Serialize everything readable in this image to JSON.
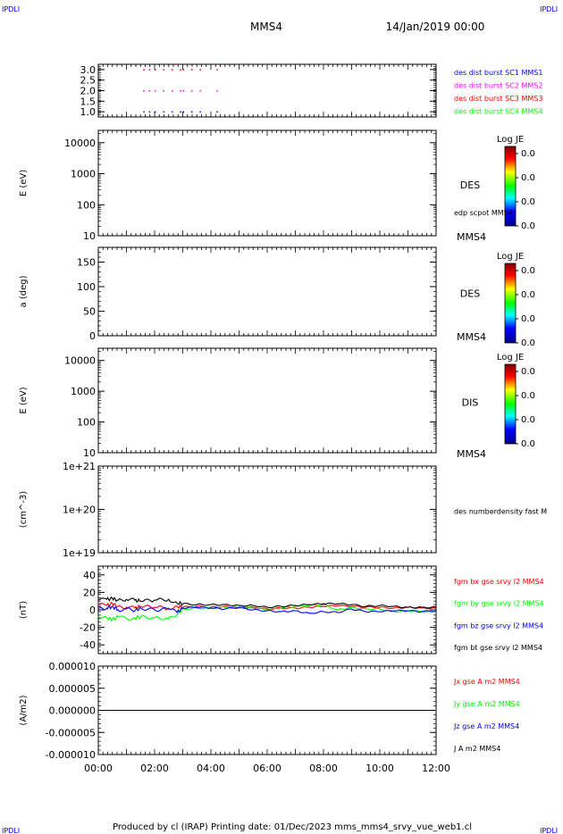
{
  "header": {
    "corner_tl": "IPDLI",
    "corner_tr": "IPDLI",
    "corner_bl": "IPDLI",
    "corner_br": "IPDLI",
    "spacecraft": "MMS4",
    "date": "14/Jan/2019 00:00"
  },
  "footer": {
    "text": "Produced by cl (IRAP)   Printing date: 01/Dec/2023   mms_mms4_srvy_vue_web1.cl"
  },
  "colors": {
    "blue": "#0000ff",
    "magenta": "#ff00ff",
    "red": "#ff0000",
    "green": "#00ff00",
    "black": "#000000"
  },
  "chart_data": [
    {
      "id": "p1",
      "type": "scatter",
      "yticks": [
        "1.0",
        "1.5",
        "2.0",
        "2.5",
        "3.0"
      ],
      "ylim": [
        0.75,
        3.25
      ],
      "xlim": [
        0,
        12
      ],
      "series": [
        {
          "name": "des dist burst SC1 MMS1",
          "color": "#0000ff",
          "y": 1.0,
          "x": [
            1.6,
            1.8,
            2.0,
            2.3,
            2.6,
            2.9,
            3.0,
            3.3,
            3.6,
            4.2
          ]
        },
        {
          "name": "des dist burst SC2 MMS2",
          "color": "#ff00ff",
          "y": 2.0,
          "x": [
            1.6,
            1.8,
            2.0,
            2.3,
            2.6,
            2.9,
            3.0,
            3.3,
            3.6,
            4.2
          ]
        },
        {
          "name": "des dist burst SC3 MMS3",
          "color": "#ff0000",
          "y": 3.0,
          "x": [
            1.6,
            1.8,
            2.0,
            2.3,
            2.6,
            2.9,
            3.0,
            3.3,
            3.6,
            4.2
          ]
        },
        {
          "name": "des dist burst SC4 MMS4",
          "color": "#00ff00",
          "y": 4.0,
          "x": []
        }
      ]
    },
    {
      "id": "p2",
      "type": "heatmap",
      "ylabel": "E (eV)",
      "yscale": "log",
      "yticks": [
        "10",
        "100",
        "1000",
        "10000"
      ],
      "ylim": [
        10,
        25000
      ],
      "instrument": "DES",
      "overlay": "edp scpot MMS4",
      "sc": "MMS4",
      "colorbar": {
        "title": "Log JE",
        "ticks": [
          "0.0",
          "0.0",
          "0.0",
          "0.0"
        ]
      }
    },
    {
      "id": "p3",
      "type": "heatmap",
      "ylabel": "a (deg)",
      "yticks": [
        "0",
        "50",
        "100",
        "150"
      ],
      "ylim": [
        0,
        180
      ],
      "instrument": "DES",
      "sc": "MMS4",
      "colorbar": {
        "title": "Log JE",
        "ticks": [
          "0.0",
          "0.0",
          "0.0",
          "0.0"
        ]
      }
    },
    {
      "id": "p4",
      "type": "heatmap",
      "ylabel": "E (eV)",
      "yscale": "log",
      "yticks": [
        "10",
        "100",
        "1000",
        "10000"
      ],
      "ylim": [
        10,
        25000
      ],
      "instrument": "DIS",
      "sc": "MMS4",
      "colorbar": {
        "title": "Log JE",
        "ticks": [
          "0.0",
          "0.0",
          "0.0",
          "0.0"
        ]
      }
    },
    {
      "id": "p5",
      "type": "line",
      "ylabel": "(cm^-3)",
      "yscale": "log",
      "yticks": [
        "1e+19",
        "1e+20",
        "1e+21"
      ],
      "ylim": [
        1e+19,
        1e+21
      ],
      "series": [
        {
          "name": "des numberdensity fast M",
          "color": "#000000",
          "values": []
        }
      ]
    },
    {
      "id": "p6",
      "type": "line",
      "ylabel": "(nT)",
      "yticks": [
        "-40",
        "-20",
        "0",
        "20",
        "40"
      ],
      "ylim": [
        -50,
        50
      ],
      "x": [
        0.0,
        0.3,
        0.5,
        0.7,
        1.0,
        1.3,
        1.5,
        2.0,
        2.5,
        2.8,
        3.0,
        3.5,
        4.0,
        4.5,
        5.0,
        5.5,
        6.0,
        6.5,
        7.0,
        7.5,
        8.0,
        8.5,
        9.0,
        9.5,
        10.0,
        10.5,
        11.0,
        11.5,
        12.0
      ],
      "series": [
        {
          "name": "fgm bx gse srvy l2 MMS4",
          "color": "#ff0000",
          "values": [
            6,
            5,
            7,
            4,
            3,
            2,
            4,
            3,
            2,
            4,
            3,
            4,
            3,
            4,
            2,
            3,
            1,
            2,
            2,
            3,
            4,
            5,
            4,
            3,
            3,
            2,
            3,
            2,
            2
          ]
        },
        {
          "name": "fgm by gse srvy l2 MMS4",
          "color": "#00ff00",
          "values": [
            -7,
            -9,
            -11,
            -8,
            -10,
            -9,
            -8,
            -9,
            -10,
            -5,
            1,
            2,
            2,
            3,
            3,
            2,
            0,
            2,
            4,
            5,
            6,
            0,
            3,
            1,
            1,
            -2,
            -1,
            -2,
            -2
          ]
        },
        {
          "name": "fgm bz gse srvy l2 MMS4",
          "color": "#0000ff",
          "values": [
            3,
            2,
            4,
            0,
            1,
            -1,
            2,
            0,
            1,
            -3,
            2,
            3,
            2,
            1,
            3,
            0,
            -1,
            -2,
            -1,
            -4,
            -2,
            -3,
            1,
            -2,
            -2,
            -1,
            -1,
            -2,
            -1
          ]
        },
        {
          "name": "fgm bt gse srvy l2 MMS4",
          "color": "#000000",
          "values": [
            11,
            12,
            13,
            11,
            12,
            11,
            10,
            11,
            12,
            8,
            7,
            6,
            6,
            6,
            5,
            5,
            3,
            4,
            5,
            6,
            7,
            7,
            6,
            4,
            5,
            4,
            3,
            3,
            3
          ]
        }
      ]
    },
    {
      "id": "p7",
      "type": "line",
      "ylabel": "(A/m2)",
      "yticks": [
        "-0.000010",
        "-0.000005",
        "0.000000",
        "0.000005",
        "0.000010"
      ],
      "ylim": [
        -1e-05,
        1e-05
      ],
      "x": [
        0,
        1,
        2,
        3,
        4,
        5,
        6,
        7,
        8,
        9,
        10,
        11,
        12
      ],
      "series": [
        {
          "name": "Jx gse A m2 MMS4",
          "color": "#ff0000",
          "values": [
            0,
            0,
            0,
            0,
            0,
            0,
            0,
            0,
            0,
            0,
            0,
            0,
            0
          ]
        },
        {
          "name": "Jy gse A m2 MMS4",
          "color": "#00ff00",
          "values": [
            0,
            0,
            0,
            0,
            0,
            0,
            0,
            0,
            0,
            0,
            0,
            0,
            0
          ]
        },
        {
          "name": "Jz gse A m2 MMS4",
          "color": "#0000ff",
          "values": [
            0,
            0,
            0,
            0,
            0,
            0,
            0,
            0,
            0,
            0,
            0,
            0,
            0
          ]
        },
        {
          "name": "J A m2 MMS4",
          "color": "#000000",
          "values": [
            0,
            0,
            0,
            0,
            0,
            0,
            0,
            0,
            0,
            0,
            0,
            0,
            0
          ]
        }
      ]
    }
  ],
  "time_axis": {
    "xlim": [
      0,
      12
    ],
    "ticks": [
      0,
      2,
      4,
      6,
      8,
      10,
      12
    ],
    "tick_labels": [
      "00:00",
      "02:00",
      "04:00",
      "06:00",
      "08:00",
      "10:00",
      "12:00"
    ]
  }
}
